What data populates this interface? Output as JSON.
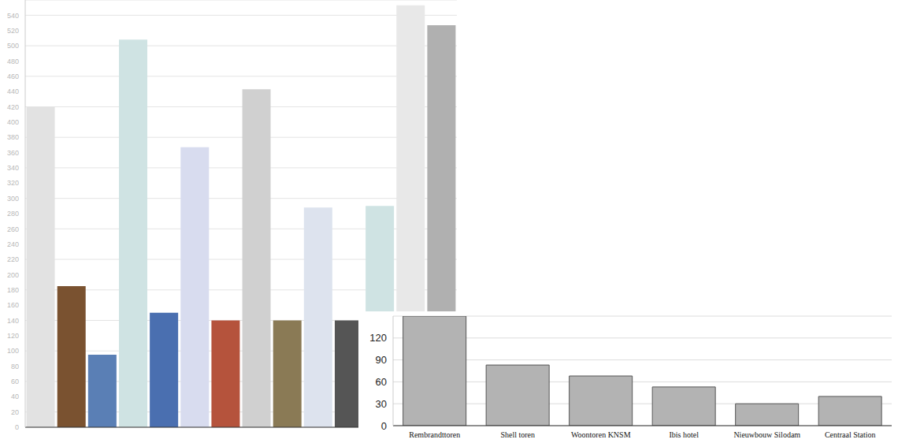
{
  "chart_data": [
    {
      "type": "bar",
      "categories": [
        null,
        null,
        null,
        null,
        null,
        null,
        null,
        null,
        null,
        null,
        null,
        null,
        null,
        null
      ],
      "values": [
        420,
        185,
        95,
        508,
        150,
        367,
        140,
        443,
        140,
        288,
        140,
        290,
        553,
        527
      ],
      "colors": [
        "#e2e2e2",
        "#7a5230",
        "#5a7fb5",
        "#cfe3e3",
        "#4a6fb0",
        "#d8dcef",
        "#b5533c",
        "#d0d0d0",
        "#8a7a55",
        "#dde3ee",
        "#555555",
        "#cfe3e3",
        "#e8e8e8",
        "#b0b0b0"
      ],
      "ylim": [
        0,
        560
      ],
      "yticks": [
        0,
        20,
        40,
        60,
        80,
        100,
        120,
        140,
        160,
        180,
        200,
        220,
        240,
        260,
        280,
        300,
        320,
        340,
        360,
        380,
        400,
        420,
        440,
        460,
        480,
        500,
        520,
        540
      ],
      "grid": true,
      "tick_labels": "y"
    },
    {
      "type": "bar",
      "categories": [
        "Rembrandttoren",
        "Shell toren",
        "Woontoren KNSM",
        "Ibis hotel",
        "Nieuwbouw Silodam",
        "Centraal Station"
      ],
      "values": [
        150,
        83,
        68,
        53,
        30,
        40
      ],
      "color": "#b3b3b3",
      "ylim": [
        0,
        150
      ],
      "yticks": [
        0,
        30,
        60,
        90,
        120
      ],
      "grid": true
    }
  ]
}
